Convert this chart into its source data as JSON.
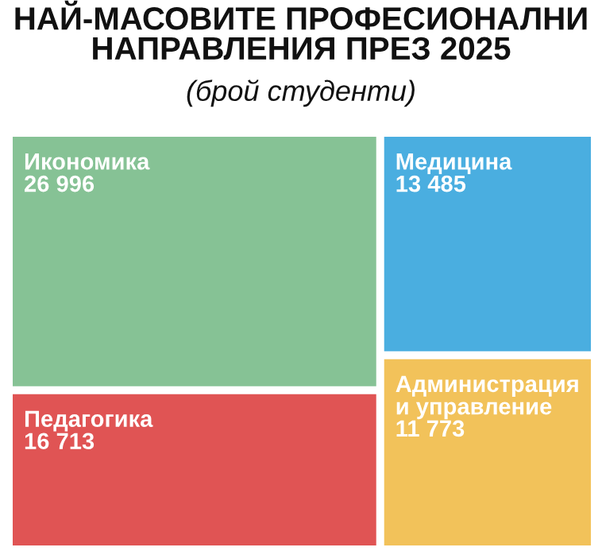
{
  "chart_data": {
    "type": "other",
    "title": "НАЙ-МАСОВИТЕ ПРОФЕСИОНАЛНИ\nНАПРАВЛЕНИЯ ПРЕЗ 2025",
    "subtitle": "(брой студенти)",
    "categories": [
      "Икономика",
      "Педагогика",
      "Медицина",
      "Администрация и управление"
    ],
    "values": [
      26996,
      16713,
      13485,
      11773
    ],
    "value_labels": [
      "26 996",
      "16 713",
      "13 485",
      "11 773"
    ],
    "colors": [
      "#86c295",
      "#e05454",
      "#4aaee0",
      "#f2c25a"
    ]
  }
}
